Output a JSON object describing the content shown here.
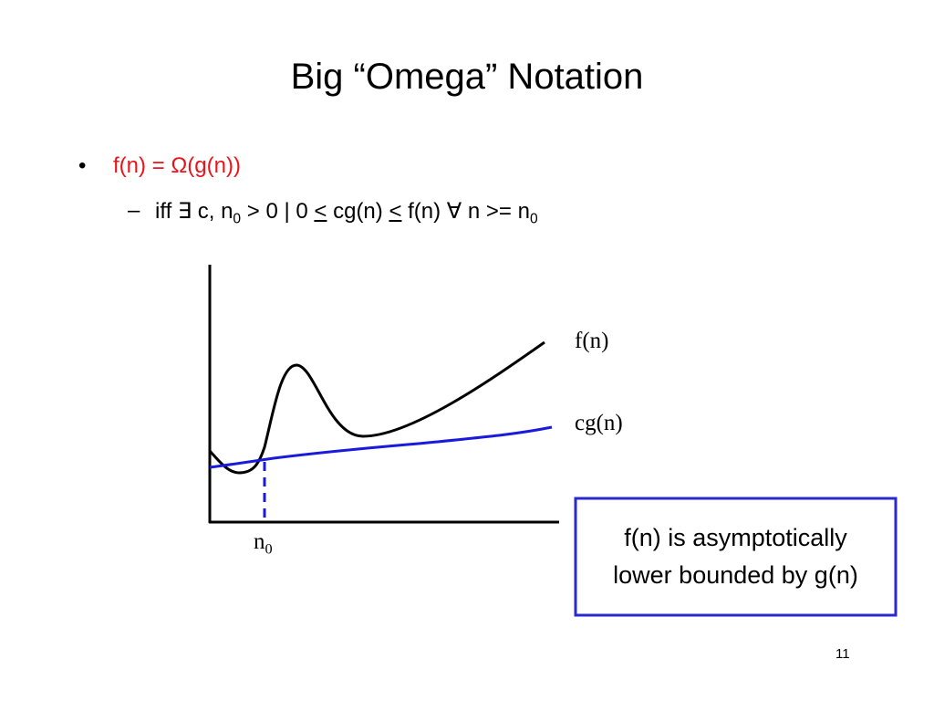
{
  "title": "Big “Omega” Notation",
  "bullets": [
    {
      "marker": "•",
      "text": "f(n) = Ω(g(n))",
      "subbullets": [
        {
          "marker": "–",
          "segments": [
            "iff ∃ c, n",
            "0",
            " > 0 | 0 ",
            "<",
            " cg(n) ",
            "<",
            " f(n) ∀ n >= n",
            "0"
          ]
        }
      ]
    }
  ],
  "diagram": {
    "f_label": "f(n)",
    "cg_label": "cg(n)",
    "n0_label": [
      "n",
      "0"
    ]
  },
  "callout": {
    "lines": [
      "f(n) is asymptotically",
      "lower bounded by g(n)"
    ]
  },
  "page_number": "11"
}
